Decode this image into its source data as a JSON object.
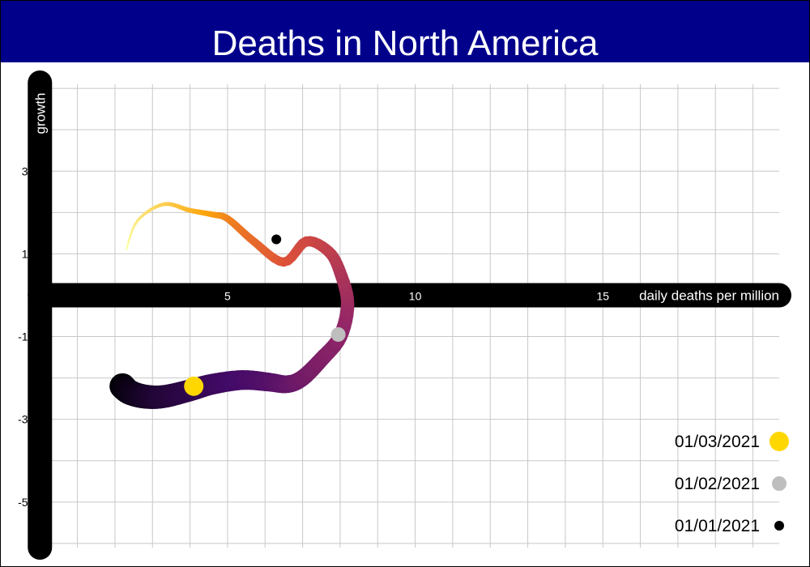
{
  "chart_data": {
    "type": "line",
    "title": "Deaths in North America",
    "xlabel": "daily deaths per million",
    "ylabel": "growth",
    "x_ticks": [
      5,
      10,
      15
    ],
    "x_tick_labels": [
      "5",
      "10",
      "15"
    ],
    "y_ticks": [
      3,
      1,
      -1,
      -3,
      -5
    ],
    "y_tick_labels": [
      "3%",
      "1%",
      "-1%",
      "-3%",
      "-5%"
    ],
    "xlim": [
      -0.2,
      19.7
    ],
    "ylim": [
      -6.1,
      5.1
    ],
    "grid": true,
    "legend_position": "bottom-right",
    "series": [
      {
        "x": [
          2.2,
          2.4,
          2.8,
          3.3,
          4.0,
          4.6,
          5.4,
          6.1,
          6.6,
          7.0,
          7.5,
          8.0,
          8.2,
          8.0,
          7.7,
          7.1,
          6.5,
          5.7,
          5.0,
          4.6,
          4.0,
          3.3,
          2.6,
          2.3
        ],
        "y": [
          -2.2,
          -2.35,
          -2.45,
          -2.45,
          -2.3,
          -2.15,
          -2.05,
          -2.1,
          -2.15,
          -2.0,
          -1.55,
          -1.0,
          -0.2,
          0.55,
          1.05,
          1.3,
          0.8,
          1.3,
          1.85,
          1.95,
          2.05,
          2.2,
          1.8,
          1.1
        ],
        "color_scale": "inferno",
        "start_color": "#000004",
        "end_color": "#fcffa4"
      }
    ],
    "highlights": [
      {
        "label": "01/03/2021",
        "x": 4.1,
        "y": -2.2,
        "color": "#ffd700"
      },
      {
        "label": "01/02/2021",
        "x": 7.95,
        "y": -0.95,
        "color": "#bebebe"
      },
      {
        "label": "01/01/2021",
        "x": 6.3,
        "y": 1.35,
        "color": "#000000"
      }
    ]
  }
}
